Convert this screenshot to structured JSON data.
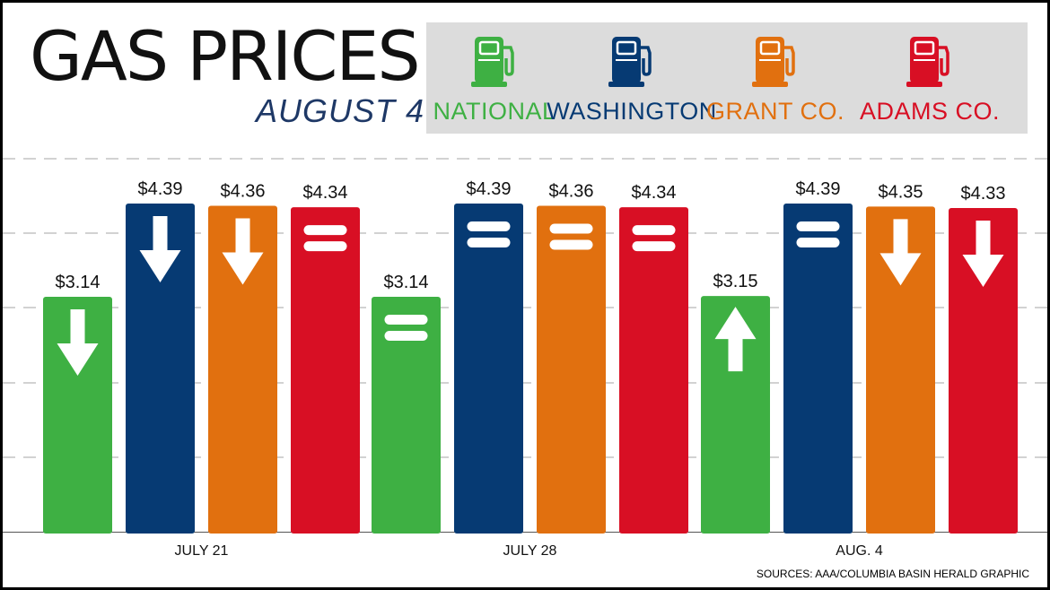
{
  "title": "GAS PRICES",
  "subtitle": "AUGUST 4",
  "sources": "SOURCES: AAA/COLUMBIA BASIN HERALD GRAPHIC",
  "legend": [
    {
      "label": "NATIONAL",
      "color": "#3eb043",
      "icon": "gas-pump-icon"
    },
    {
      "label": "WASHINGTON",
      "color": "#063a73",
      "icon": "gas-pump-icon"
    },
    {
      "label": "GRANT CO.",
      "color": "#e1700f",
      "icon": "gas-pump-icon"
    },
    {
      "label": "ADAMS CO.",
      "color": "#d80f24",
      "icon": "gas-pump-icon"
    }
  ],
  "colors": {
    "gridline": "#b7b7b7",
    "legend_bg": "#dcdcdc",
    "subtitle": "#1e3866"
  },
  "chart_data": {
    "type": "bar",
    "categories": [
      "JULY 21",
      "JULY 28",
      "AUG. 4"
    ],
    "series": [
      {
        "name": "NATIONAL",
        "values": [
          3.14,
          3.14,
          3.15
        ],
        "labels": [
          "$3.14",
          "$3.14",
          "$3.15"
        ],
        "trend": [
          "down",
          "same",
          "up"
        ]
      },
      {
        "name": "WASHINGTON",
        "values": [
          4.39,
          4.39,
          4.39
        ],
        "labels": [
          "$4.39",
          "$4.39",
          "$4.39"
        ],
        "trend": [
          "down",
          "same",
          "same"
        ]
      },
      {
        "name": "GRANT CO.",
        "values": [
          4.36,
          4.36,
          4.35
        ],
        "labels": [
          "$4.36",
          "$4.36",
          "$4.35"
        ],
        "trend": [
          "down",
          "same",
          "down"
        ]
      },
      {
        "name": "ADAMS CO.",
        "values": [
          4.34,
          4.34,
          4.33
        ],
        "labels": [
          "$4.34",
          "$4.34",
          "$4.33"
        ],
        "trend": [
          "same",
          "same",
          "down"
        ]
      }
    ],
    "trend_icons": {
      "down": "down-arrow-icon",
      "up": "up-arrow-icon",
      "same": "equals-icon"
    },
    "grid": true,
    "legend_position": "top-right",
    "xlabel": "",
    "ylabel": ""
  }
}
